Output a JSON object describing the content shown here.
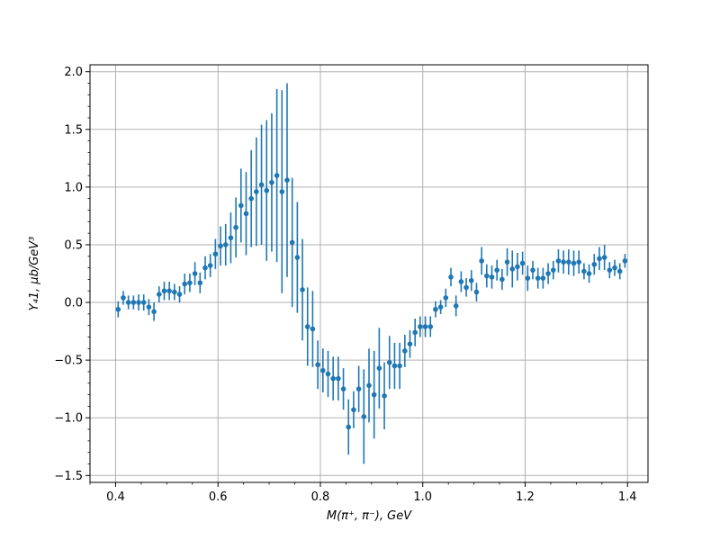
{
  "chart_data": {
    "type": "scatter",
    "title": "",
    "xlabel": "M(π⁺, π⁻), GeV",
    "ylabel": "Y₄1, μb/GeV³",
    "xlim": [
      0.35,
      1.44
    ],
    "ylim": [
      -1.56,
      2.06
    ],
    "xticks": [
      0.4,
      0.6,
      0.8,
      1.0,
      1.2,
      1.4
    ],
    "xtick_labels": [
      "0.4",
      "0.6",
      "0.8",
      "1.0",
      "1.2",
      "1.4"
    ],
    "yticks": [
      -1.5,
      -1.0,
      -0.5,
      0.0,
      0.5,
      1.0,
      1.5,
      2.0
    ],
    "ytick_labels": [
      "−1.5",
      "−1.0",
      "−0.5",
      "0.0",
      "0.5",
      "1.0",
      "1.5",
      "2.0"
    ],
    "grid": true,
    "minor_ticks": true,
    "legend": "none",
    "colors": {
      "series": "#1f77b4",
      "grid": "#b0b0b0",
      "axis": "#000000"
    },
    "series": [
      {
        "x": [
          0.405,
          0.415,
          0.425,
          0.435,
          0.445,
          0.455,
          0.465,
          0.475,
          0.485,
          0.495,
          0.505,
          0.515,
          0.525,
          0.535,
          0.545,
          0.555,
          0.565,
          0.575,
          0.585,
          0.595,
          0.605,
          0.615,
          0.625,
          0.635,
          0.645,
          0.655,
          0.665,
          0.675,
          0.685,
          0.695,
          0.705,
          0.715,
          0.725,
          0.735,
          0.745,
          0.755,
          0.765,
          0.775,
          0.785,
          0.795,
          0.805,
          0.815,
          0.825,
          0.835,
          0.845,
          0.855,
          0.865,
          0.875,
          0.885,
          0.895,
          0.905,
          0.915,
          0.925,
          0.935,
          0.945,
          0.955,
          0.965,
          0.975,
          0.985,
          0.995,
          1.005,
          1.015,
          1.025,
          1.035,
          1.045,
          1.055,
          1.065,
          1.075,
          1.085,
          1.095,
          1.105,
          1.115,
          1.125,
          1.135,
          1.145,
          1.155,
          1.165,
          1.175,
          1.185,
          1.195,
          1.205,
          1.215,
          1.225,
          1.235,
          1.245,
          1.255,
          1.265,
          1.275,
          1.285,
          1.295,
          1.305,
          1.315,
          1.325,
          1.335,
          1.345,
          1.355,
          1.365,
          1.375,
          1.385,
          1.395
        ],
        "y": [
          -0.06,
          0.04,
          0.0,
          0.0,
          0.0,
          0.0,
          -0.04,
          -0.08,
          0.07,
          0.1,
          0.1,
          0.09,
          0.07,
          0.16,
          0.17,
          0.25,
          0.17,
          0.3,
          0.32,
          0.42,
          0.49,
          0.5,
          0.56,
          0.65,
          0.84,
          0.77,
          0.9,
          0.96,
          1.02,
          0.97,
          1.04,
          1.1,
          0.96,
          1.06,
          0.52,
          0.39,
          0.11,
          -0.21,
          -0.23,
          -0.54,
          -0.59,
          -0.62,
          -0.66,
          -0.66,
          -0.75,
          -1.08,
          -0.93,
          -0.75,
          -0.99,
          -0.72,
          -0.8,
          -0.57,
          -0.81,
          -0.52,
          -0.55,
          -0.55,
          -0.42,
          -0.36,
          -0.26,
          -0.21,
          -0.21,
          -0.21,
          -0.06,
          -0.04,
          0.04,
          0.22,
          -0.03,
          0.18,
          0.13,
          0.19,
          0.09,
          0.36,
          0.23,
          0.22,
          0.28,
          0.2,
          0.35,
          0.29,
          0.31,
          0.34,
          0.21,
          0.28,
          0.21,
          0.21,
          0.25,
          0.28,
          0.36,
          0.35,
          0.35,
          0.34,
          0.35,
          0.27,
          0.25,
          0.33,
          0.38,
          0.39,
          0.28,
          0.3,
          0.27,
          0.36
        ],
        "yerr": [
          0.07,
          0.06,
          0.06,
          0.06,
          0.07,
          0.07,
          0.07,
          0.08,
          0.07,
          0.08,
          0.08,
          0.07,
          0.07,
          0.09,
          0.08,
          0.1,
          0.09,
          0.1,
          0.1,
          0.13,
          0.17,
          0.18,
          0.22,
          0.26,
          0.32,
          0.36,
          0.42,
          0.47,
          0.52,
          0.61,
          0.6,
          0.75,
          0.88,
          0.84,
          0.56,
          0.48,
          0.44,
          0.34,
          0.33,
          0.21,
          0.19,
          0.2,
          0.19,
          0.19,
          0.18,
          0.24,
          0.16,
          0.2,
          0.41,
          0.32,
          0.38,
          0.35,
          0.29,
          0.23,
          0.2,
          0.2,
          0.14,
          0.12,
          0.12,
          0.09,
          0.09,
          0.09,
          0.07,
          0.06,
          0.08,
          0.08,
          0.09,
          0.09,
          0.08,
          0.09,
          0.08,
          0.12,
          0.1,
          0.1,
          0.09,
          0.09,
          0.12,
          0.16,
          0.12,
          0.1,
          0.11,
          0.08,
          0.09,
          0.09,
          0.09,
          0.08,
          0.1,
          0.1,
          0.11,
          0.11,
          0.1,
          0.07,
          0.08,
          0.09,
          0.1,
          0.11,
          0.07,
          0.07,
          0.07,
          0.06
        ]
      }
    ]
  }
}
